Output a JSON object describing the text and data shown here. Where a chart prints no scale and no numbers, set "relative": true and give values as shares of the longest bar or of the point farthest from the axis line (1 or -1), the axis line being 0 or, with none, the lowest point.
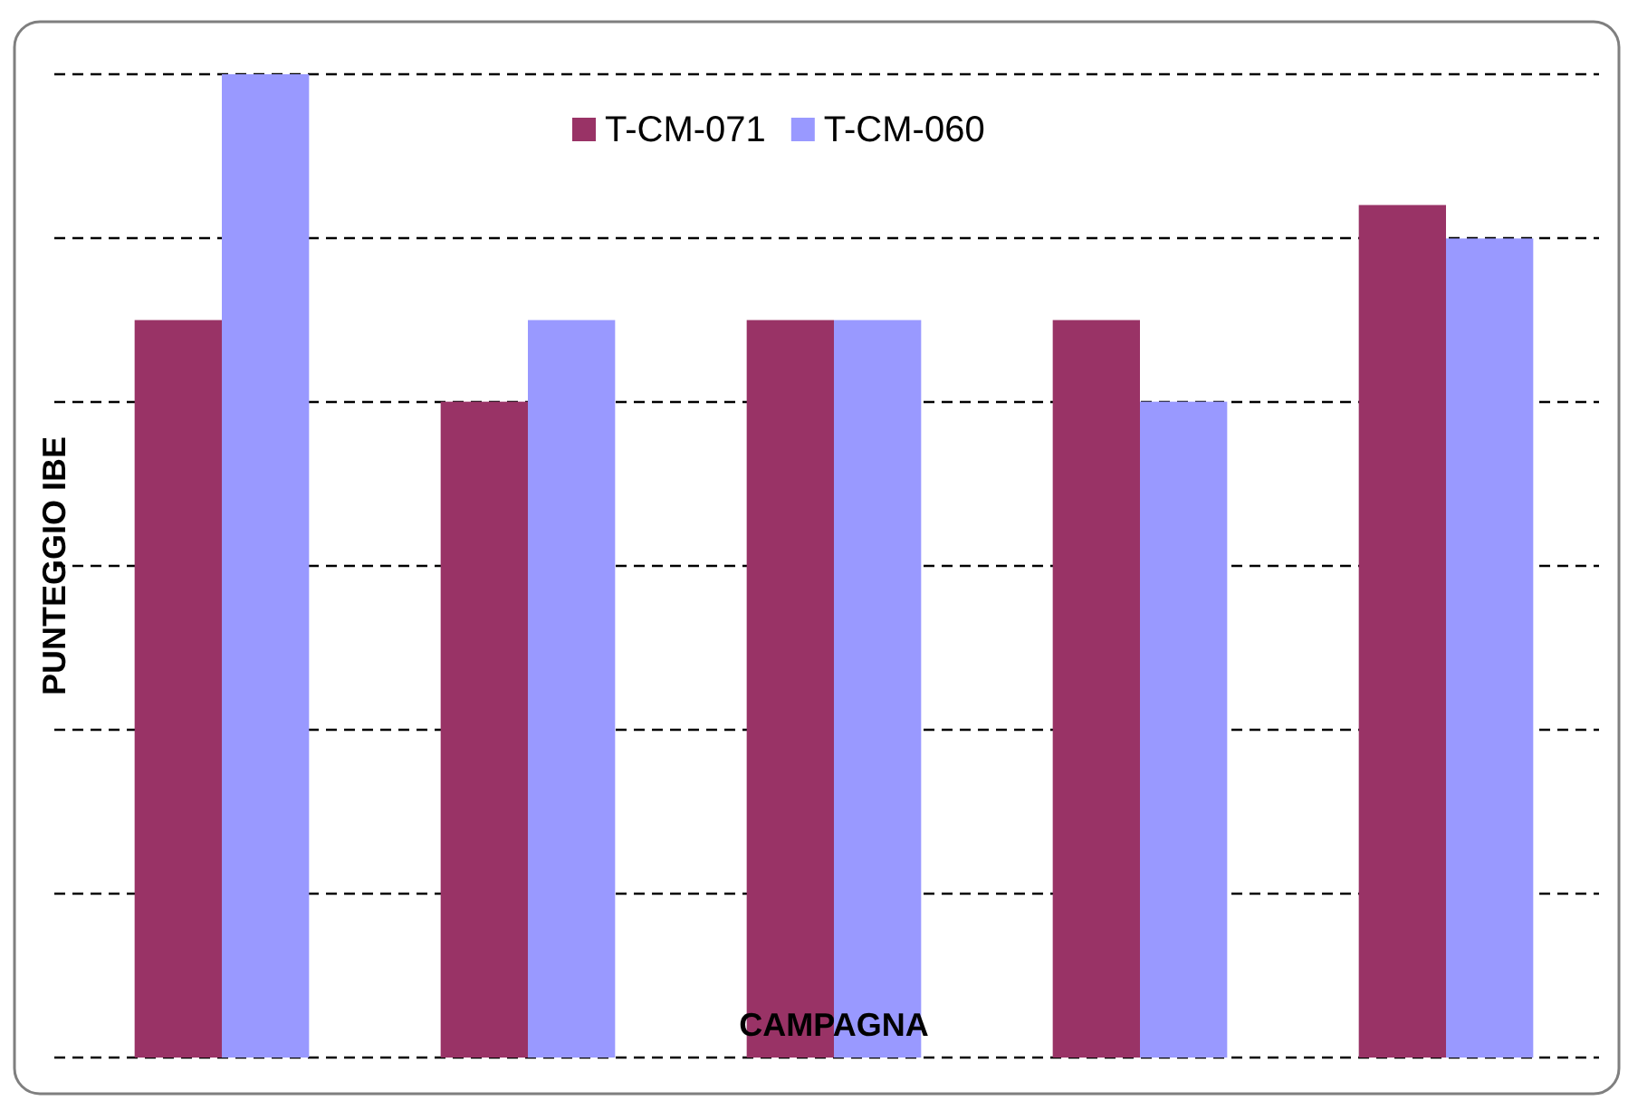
{
  "chart_data": {
    "type": "bar",
    "relative": true,
    "xlabel": "CAMPAGNA",
    "ylabel": "PUNTEGGIO IBE",
    "categories": [
      null,
      null,
      null,
      null,
      null
    ],
    "series": [
      {
        "name": "T-CM-071",
        "color": "#993366",
        "values": [
          0.75,
          0.667,
          0.75,
          0.75,
          0.867
        ]
      },
      {
        "name": "T-CM-060",
        "color": "#9999ff",
        "values": [
          1,
          0.75,
          0.75,
          0.667,
          0.833
        ]
      }
    ],
    "grid": "y",
    "legend": "top"
  }
}
